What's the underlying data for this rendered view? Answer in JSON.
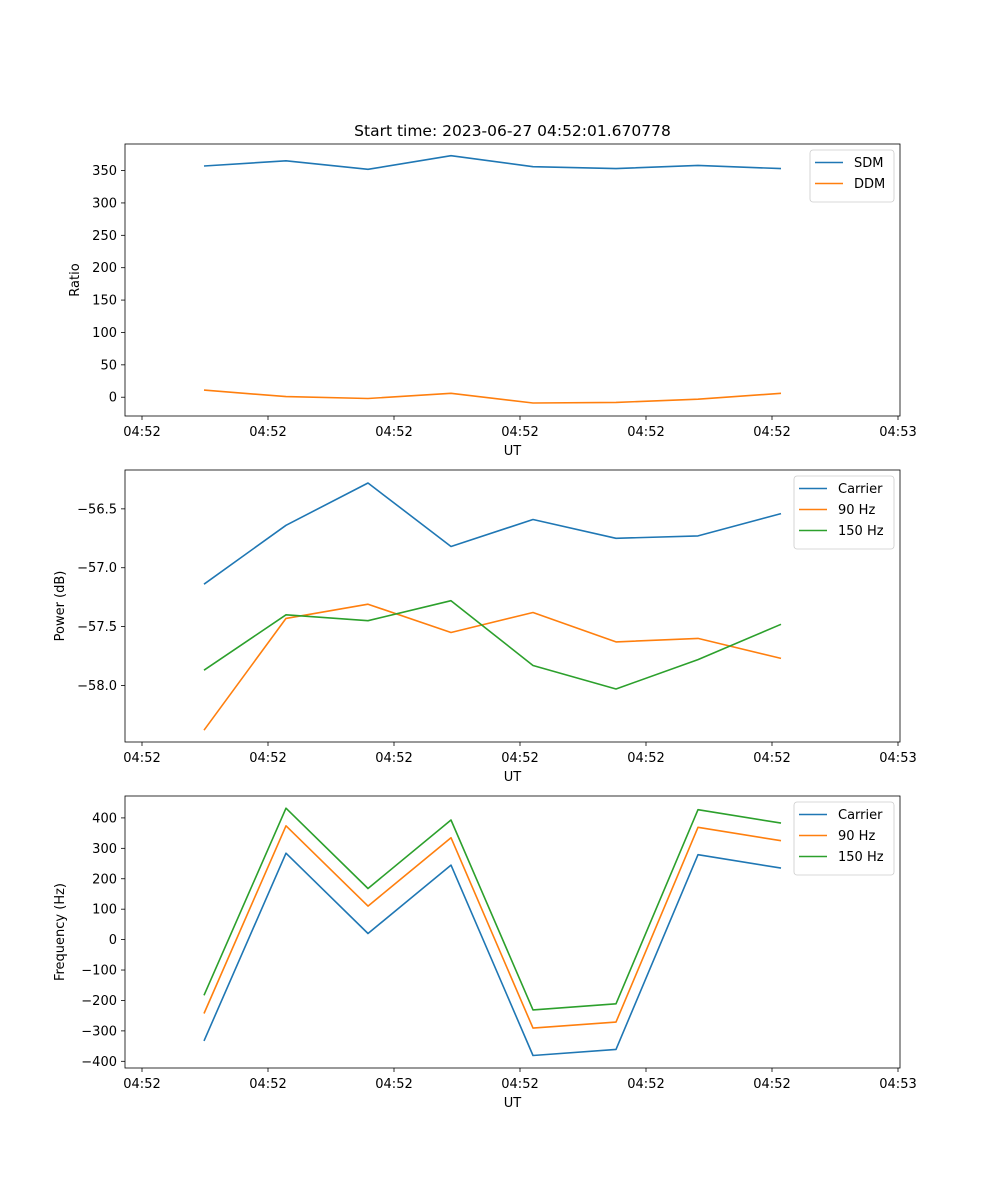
{
  "title": "Start time: 2023-06-27 04:52:01.670778",
  "colors": {
    "blue": "#1f77b4",
    "orange": "#ff7f0e",
    "green": "#2ca02c"
  },
  "chart_data": [
    {
      "type": "line",
      "xlabel": "UT",
      "ylabel": "Ratio",
      "x_tick_labels": [
        "04:52",
        "04:52",
        "04:52",
        "04:52",
        "04:52",
        "04:52",
        "04:52",
        "04:53"
      ],
      "y_ticks": [
        0,
        50,
        100,
        150,
        200,
        250,
        300,
        350
      ],
      "ylim": [
        -29,
        391
      ],
      "x_points": [
        0.25,
        0.58,
        0.91,
        1.24,
        1.57,
        1.9,
        2.23,
        2.56
      ],
      "legend_position": "upper right",
      "series": [
        {
          "name": "SDM",
          "color": "#1f77b4",
          "values": [
            357,
            365,
            352,
            373,
            356,
            353,
            358,
            353
          ]
        },
        {
          "name": "DDM",
          "color": "#ff7f0e",
          "values": [
            11,
            1,
            -2,
            6,
            -9,
            -8,
            -3,
            6
          ]
        }
      ]
    },
    {
      "type": "line",
      "xlabel": "UT",
      "ylabel": "Power (dB)",
      "x_tick_labels": [
        "04:52",
        "04:52",
        "04:52",
        "04:52",
        "04:52",
        "04:52",
        "04:52",
        "04:53"
      ],
      "y_ticks": [
        -58.0,
        -57.5,
        -57.0,
        -56.5
      ],
      "y_tick_labels": [
        "−58.0",
        "−57.5",
        "−57.0",
        "−56.5"
      ],
      "ylim": [
        -58.48,
        -56.17
      ],
      "x_points": [
        0.25,
        0.58,
        0.91,
        1.24,
        1.57,
        1.9,
        2.23,
        2.56
      ],
      "legend_position": "upper right",
      "series": [
        {
          "name": "Carrier",
          "color": "#1f77b4",
          "values": [
            -57.14,
            -56.64,
            -56.28,
            -56.82,
            -56.59,
            -56.75,
            -56.73,
            -56.54
          ]
        },
        {
          "name": "90 Hz",
          "color": "#ff7f0e",
          "values": [
            -58.38,
            -57.43,
            -57.31,
            -57.55,
            -57.38,
            -57.63,
            -57.6,
            -57.77
          ]
        },
        {
          "name": "150 Hz",
          "color": "#2ca02c",
          "values": [
            -57.87,
            -57.4,
            -57.45,
            -57.28,
            -57.83,
            -58.03,
            -57.78,
            -57.48
          ]
        }
      ]
    },
    {
      "type": "line",
      "xlabel": "UT",
      "ylabel": "Frequency (Hz)",
      "x_tick_labels": [
        "04:52",
        "04:52",
        "04:52",
        "04:52",
        "04:52",
        "04:52",
        "04:52",
        "04:53"
      ],
      "y_ticks": [
        -400,
        -300,
        -200,
        -100,
        0,
        100,
        200,
        300,
        400
      ],
      "y_tick_labels": [
        "−400",
        "−300",
        "−200",
        "−100",
        "0",
        "100",
        "200",
        "300",
        "400"
      ],
      "ylim": [
        -422,
        472
      ],
      "x_points": [
        0.25,
        0.58,
        0.91,
        1.24,
        1.57,
        1.9,
        2.23,
        2.56
      ],
      "legend_position": "upper right",
      "series": [
        {
          "name": "Carrier",
          "color": "#1f77b4",
          "values": [
            -333,
            284,
            20,
            245,
            -381,
            -361,
            279,
            235
          ]
        },
        {
          "name": "90 Hz",
          "color": "#ff7f0e",
          "values": [
            -243,
            374,
            110,
            335,
            -291,
            -271,
            369,
            325
          ]
        },
        {
          "name": "150 Hz",
          "color": "#2ca02c",
          "values": [
            -183,
            432,
            168,
            393,
            -231,
            -211,
            427,
            383
          ]
        }
      ]
    }
  ]
}
